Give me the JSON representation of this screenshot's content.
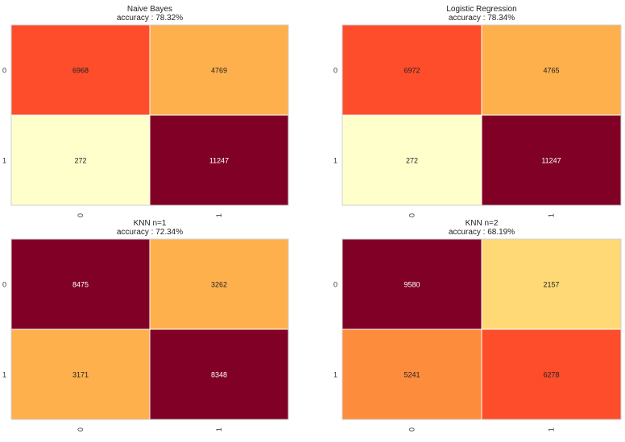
{
  "chart_data": [
    {
      "type": "heatmap",
      "title": "Naive Bayes",
      "subtitle": "accuracy : 78.32%",
      "row_labels": [
        "0",
        "1"
      ],
      "col_labels": [
        "0",
        "1"
      ],
      "values": [
        [
          6968,
          4769
        ],
        [
          272,
          11247
        ]
      ],
      "cell_colors": [
        [
          "#fd4d2b",
          "#feb04c"
        ],
        [
          "#ffffcc",
          "#800026"
        ]
      ],
      "text_colors": [
        [
          "#222222",
          "#222222"
        ],
        [
          "#222222",
          "#ffffff"
        ]
      ]
    },
    {
      "type": "heatmap",
      "title": "Logistic Regression",
      "subtitle": "accuracy : 78.34%",
      "row_labels": [
        "0",
        "1"
      ],
      "col_labels": [
        "0",
        "1"
      ],
      "values": [
        [
          6972,
          4765
        ],
        [
          272,
          11247
        ]
      ],
      "cell_colors": [
        [
          "#fd4d2b",
          "#feb04c"
        ],
        [
          "#ffffcc",
          "#800026"
        ]
      ],
      "text_colors": [
        [
          "#222222",
          "#222222"
        ],
        [
          "#222222",
          "#ffffff"
        ]
      ]
    },
    {
      "type": "heatmap",
      "title": "KNN n=1",
      "subtitle": "accuracy : 72.34%",
      "row_labels": [
        "0",
        "1"
      ],
      "col_labels": [
        "0",
        "1"
      ],
      "values": [
        [
          8475,
          3262
        ],
        [
          3171,
          8348
        ]
      ],
      "cell_colors": [
        [
          "#800026",
          "#feb04c"
        ],
        [
          "#feb04c",
          "#800026"
        ]
      ],
      "text_colors": [
        [
          "#ffffff",
          "#222222"
        ],
        [
          "#222222",
          "#ffffff"
        ]
      ]
    },
    {
      "type": "heatmap",
      "title": "KNN n=2",
      "subtitle": "accuracy : 68.19%",
      "row_labels": [
        "0",
        "1"
      ],
      "col_labels": [
        "0",
        "1"
      ],
      "values": [
        [
          9580,
          2157
        ],
        [
          5241,
          6278
        ]
      ],
      "cell_colors": [
        [
          "#800026",
          "#fed976"
        ],
        [
          "#fd8d3c",
          "#fd4d2b"
        ]
      ],
      "text_colors": [
        [
          "#ffffff",
          "#222222"
        ],
        [
          "#222222",
          "#222222"
        ]
      ]
    }
  ]
}
